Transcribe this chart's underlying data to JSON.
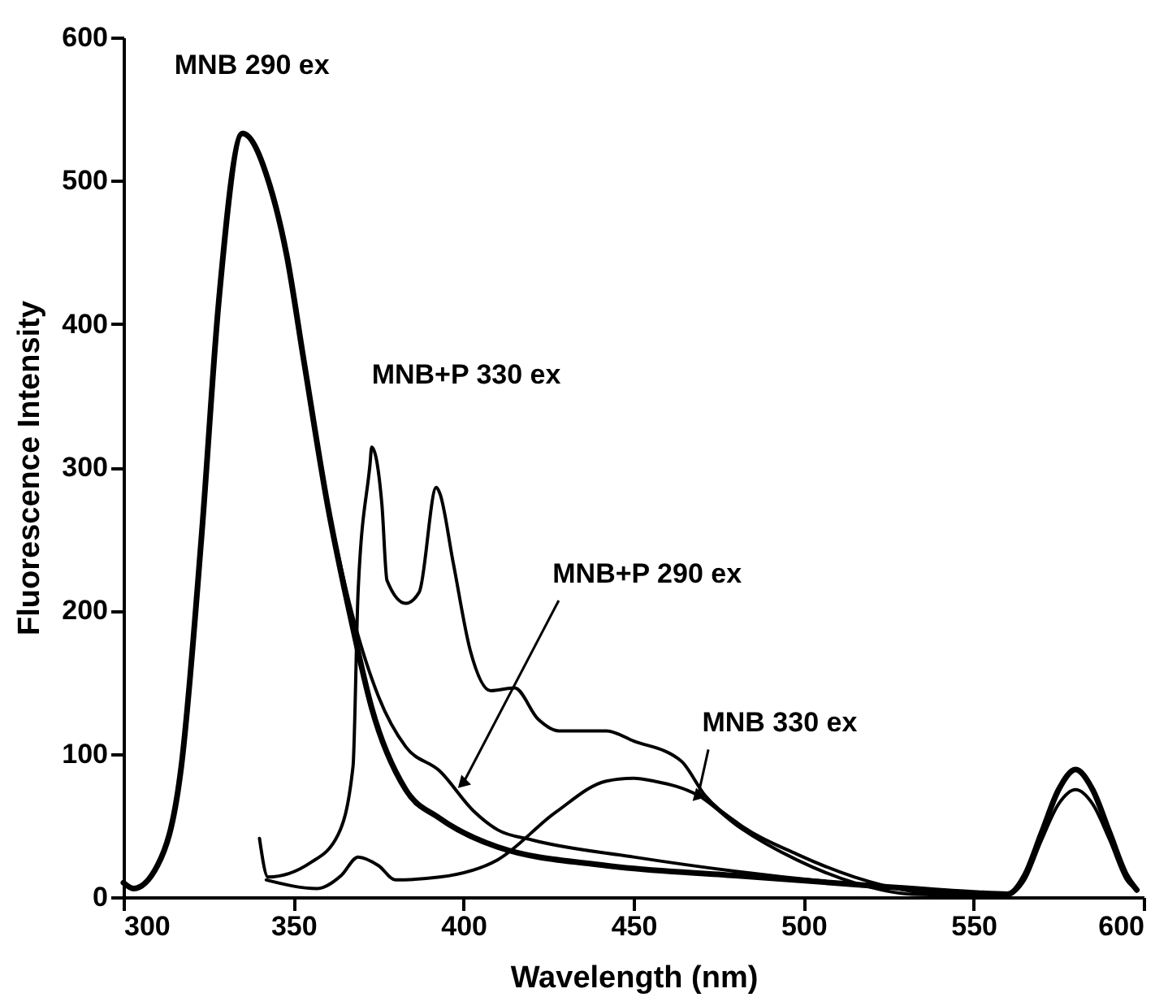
{
  "chart_data": {
    "type": "line",
    "xlabel": "Wavelength (nm)",
    "ylabel": "Fluorescence Intensity",
    "xlim": [
      300,
      600
    ],
    "xticks": [
      300,
      350,
      400,
      450,
      500,
      550,
      600
    ],
    "ylim": [
      0,
      600
    ],
    "yticks": [
      0,
      100,
      200,
      300,
      400,
      500,
      600
    ],
    "grid": false,
    "marker": "none",
    "line_style": "solid",
    "series": [
      {
        "color": "#000000",
        "x": [
          300,
          303,
          310,
          317,
          323,
          328,
          335,
          343,
          348,
          353,
          360,
          367,
          373,
          383,
          393,
          410,
          442,
          480,
          520,
          550,
          560,
          565,
          570,
          575,
          580,
          585,
          590,
          595,
          598
        ],
        "values": [
          10,
          6,
          22,
          91,
          253,
          415,
          533,
          497,
          448,
          375,
          274,
          193,
          132,
          75,
          55,
          35,
          22,
          15,
          8,
          3,
          2,
          15,
          45,
          75,
          89,
          75,
          45,
          15,
          5
        ]
      },
      {
        "color": "#000000",
        "x": [
          360,
          367,
          375,
          383,
          393,
          403,
          410,
          420,
          450,
          480,
          520,
          550,
          560,
          565,
          570,
          575,
          580,
          585,
          590,
          595,
          598
        ],
        "values": [
          274,
          200,
          140,
          105,
          88,
          60,
          47,
          40,
          28,
          18,
          8,
          3,
          2,
          12,
          40,
          65,
          75,
          65,
          40,
          12,
          5
        ]
      },
      {
        "color": "#000000",
        "x": [
          340,
          342.5,
          355,
          363,
          367.5,
          369,
          372.5,
          373,
          376,
          377.5,
          383,
          387,
          392,
          393,
          397,
          402,
          408,
          415,
          422,
          428,
          442,
          450,
          464,
          471,
          481,
          498,
          515,
          532,
          549,
          560
        ],
        "values": [
          41,
          14,
          24,
          43,
          91,
          213,
          302,
          314,
          274,
          221,
          205,
          213,
          286,
          282,
          233,
          172,
          144,
          146,
          124,
          116,
          116,
          109,
          95,
          71,
          51,
          30,
          14,
          4,
          1,
          1
        ]
      },
      {
        "color": "#000000",
        "x": [
          342,
          357,
          364,
          369,
          375,
          380,
          393,
          410,
          427,
          442,
          450,
          456,
          469,
          481,
          498,
          515,
          532,
          560
        ],
        "values": [
          12,
          6,
          15,
          28,
          22,
          12,
          14,
          26,
          59,
          81,
          83,
          81,
          71,
          49,
          26,
          10,
          2,
          1
        ]
      }
    ],
    "annotations": [
      {
        "text": "MNB 290 ex",
        "x": 335,
        "y": 533
      },
      {
        "text": "MNB+P 330 ex",
        "x": 373,
        "y": 314
      },
      {
        "text": "MNB+P 290 ex",
        "x": 400,
        "y": 80
      },
      {
        "text": "MNB 330 ex",
        "x": 469,
        "y": 71
      }
    ]
  }
}
